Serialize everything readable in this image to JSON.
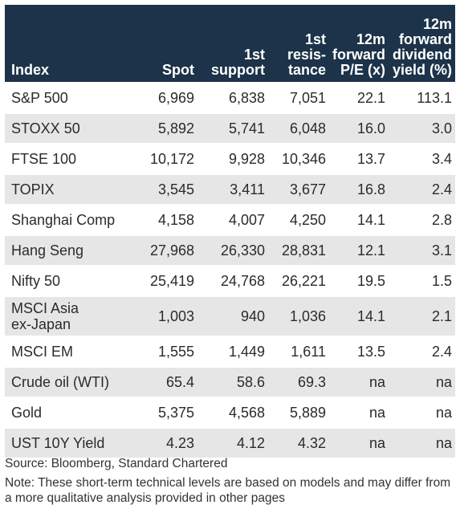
{
  "header": {
    "index": [
      "Index"
    ],
    "spot": [
      "Spot"
    ],
    "support": [
      "1st",
      "support"
    ],
    "resistance": [
      "1st",
      "resis-",
      "tance"
    ],
    "pe": [
      "12m",
      "forward",
      "P/E (x)"
    ],
    "dividend": [
      "12m",
      "forward",
      "dividend",
      "yield (%)"
    ]
  },
  "rows": [
    {
      "index": [
        "S&P 500"
      ],
      "spot": "6,969",
      "support": "6,838",
      "resistance": "7,051",
      "pe": "22.1",
      "dividend": "113.1"
    },
    {
      "index": [
        "STOXX 50"
      ],
      "spot": "5,892",
      "support": "5,741",
      "resistance": "6,048",
      "pe": "16.0",
      "dividend": "3.0"
    },
    {
      "index": [
        "FTSE 100"
      ],
      "spot": "10,172",
      "support": "9,928",
      "resistance": "10,346",
      "pe": "13.7",
      "dividend": "3.4"
    },
    {
      "index": [
        "TOPIX"
      ],
      "spot": "3,545",
      "support": "3,411",
      "resistance": "3,677",
      "pe": "16.8",
      "dividend": "2.4"
    },
    {
      "index": [
        "Shanghai Comp"
      ],
      "spot": "4,158",
      "support": "4,007",
      "resistance": "4,250",
      "pe": "14.1",
      "dividend": "2.8"
    },
    {
      "index": [
        "Hang Seng"
      ],
      "spot": "27,968",
      "support": "26,330",
      "resistance": "28,831",
      "pe": "12.1",
      "dividend": "3.1"
    },
    {
      "index": [
        "Nifty 50"
      ],
      "spot": "25,419",
      "support": "24,768",
      "resistance": "26,221",
      "pe": "19.5",
      "dividend": "1.5"
    },
    {
      "index": [
        "MSCI Asia",
        "ex-Japan"
      ],
      "spot": "1,003",
      "support": "940",
      "resistance": "1,036",
      "pe": "14.1",
      "dividend": "2.1"
    },
    {
      "index": [
        "MSCI EM"
      ],
      "spot": "1,555",
      "support": "1,449",
      "resistance": "1,611",
      "pe": "13.5",
      "dividend": "2.4"
    },
    {
      "index": [
        "Crude oil (WTI)"
      ],
      "spot": "65.4",
      "support": "58.6",
      "resistance": "69.3",
      "pe": "na",
      "dividend": "na"
    },
    {
      "index": [
        "Gold"
      ],
      "spot": "5,375",
      "support": "4,568",
      "resistance": "5,889",
      "pe": "na",
      "dividend": "na"
    },
    {
      "index": [
        "UST 10Y Yield"
      ],
      "spot": "4.23",
      "support": "4.12",
      "resistance": "4.32",
      "pe": "na",
      "dividend": "na"
    }
  ],
  "footer": {
    "source": "Source: Bloomberg, Standard Chartered",
    "note": "Note: These short-term technical levels are based on models and may differ from a more qualitative analysis provided in other pages"
  },
  "colors": {
    "header_bg": "#1c3349",
    "header_text": "#ffffff",
    "stripe": "#e6e6e6"
  }
}
